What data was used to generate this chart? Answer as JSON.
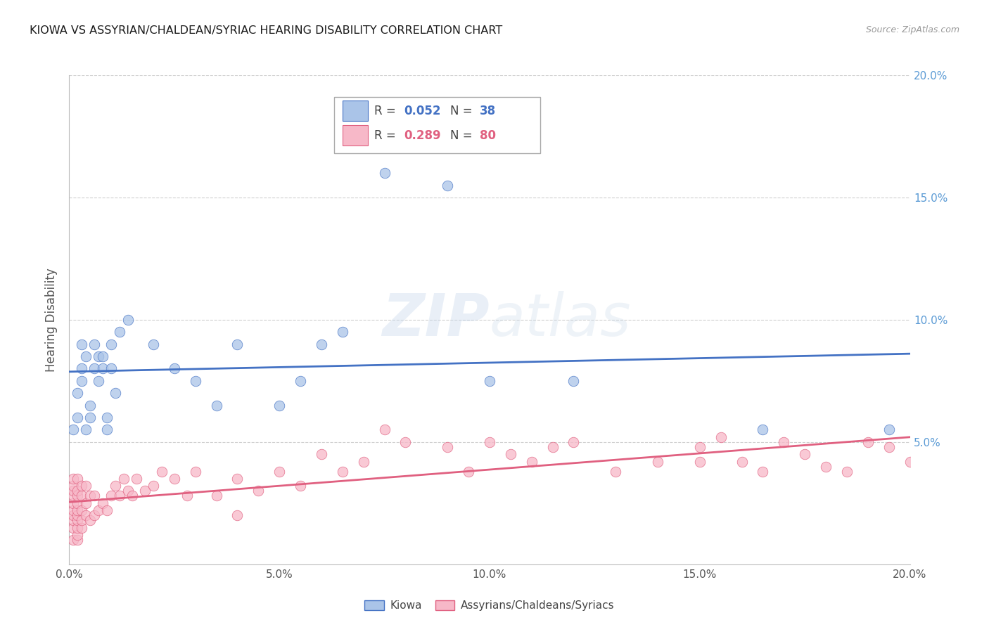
{
  "title": "KIOWA VS ASSYRIAN/CHALDEAN/SYRIAC HEARING DISABILITY CORRELATION CHART",
  "source": "Source: ZipAtlas.com",
  "ylabel": "Hearing Disability",
  "xlim": [
    0.0,
    0.2
  ],
  "ylim": [
    0.0,
    0.2
  ],
  "xticks": [
    0.0,
    0.05,
    0.1,
    0.15,
    0.2
  ],
  "yticks": [
    0.05,
    0.1,
    0.15,
    0.2
  ],
  "xticklabels": [
    "0.0%",
    "5.0%",
    "10.0%",
    "15.0%",
    "20.0%"
  ],
  "yticklabels_right": [
    "5.0%",
    "10.0%",
    "15.0%",
    "20.0%"
  ],
  "background_color": "#ffffff",
  "grid_color": "#d0d0d0",
  "blue_color": "#aac4e8",
  "pink_color": "#f7b8c8",
  "blue_line_color": "#4472c4",
  "pink_line_color": "#e06080",
  "title_color": "#1a1a1a",
  "axis_label_color": "#555555",
  "tick_label_color_right": "#5b9bd5",
  "legend_r_blue": "0.052",
  "legend_n_blue": "38",
  "legend_r_pink": "0.289",
  "legend_n_pink": "80",
  "kiowa_x": [
    0.001,
    0.002,
    0.002,
    0.003,
    0.003,
    0.003,
    0.004,
    0.004,
    0.005,
    0.005,
    0.006,
    0.006,
    0.007,
    0.007,
    0.008,
    0.008,
    0.009,
    0.009,
    0.01,
    0.01,
    0.011,
    0.012,
    0.014,
    0.02,
    0.025,
    0.03,
    0.035,
    0.04,
    0.05,
    0.055,
    0.06,
    0.065,
    0.075,
    0.09,
    0.1,
    0.12,
    0.165,
    0.195
  ],
  "kiowa_y": [
    0.055,
    0.06,
    0.07,
    0.075,
    0.08,
    0.09,
    0.055,
    0.085,
    0.06,
    0.065,
    0.08,
    0.09,
    0.075,
    0.085,
    0.08,
    0.085,
    0.06,
    0.055,
    0.08,
    0.09,
    0.07,
    0.095,
    0.1,
    0.09,
    0.08,
    0.075,
    0.065,
    0.09,
    0.065,
    0.075,
    0.09,
    0.095,
    0.16,
    0.155,
    0.075,
    0.075,
    0.055,
    0.055
  ],
  "acs_x": [
    0.001,
    0.001,
    0.001,
    0.001,
    0.001,
    0.001,
    0.001,
    0.001,
    0.001,
    0.001,
    0.002,
    0.002,
    0.002,
    0.002,
    0.002,
    0.002,
    0.002,
    0.002,
    0.002,
    0.002,
    0.003,
    0.003,
    0.003,
    0.003,
    0.003,
    0.004,
    0.004,
    0.004,
    0.005,
    0.005,
    0.006,
    0.006,
    0.007,
    0.008,
    0.009,
    0.01,
    0.011,
    0.012,
    0.013,
    0.014,
    0.015,
    0.016,
    0.018,
    0.02,
    0.022,
    0.025,
    0.028,
    0.03,
    0.035,
    0.04,
    0.045,
    0.05,
    0.055,
    0.06,
    0.065,
    0.07,
    0.075,
    0.08,
    0.09,
    0.095,
    0.1,
    0.105,
    0.11,
    0.115,
    0.12,
    0.13,
    0.14,
    0.15,
    0.155,
    0.16,
    0.165,
    0.17,
    0.175,
    0.18,
    0.185,
    0.19,
    0.195,
    0.2,
    0.15,
    0.04
  ],
  "acs_y": [
    0.01,
    0.015,
    0.018,
    0.02,
    0.022,
    0.025,
    0.028,
    0.03,
    0.032,
    0.035,
    0.01,
    0.012,
    0.015,
    0.018,
    0.02,
    0.022,
    0.025,
    0.028,
    0.03,
    0.035,
    0.015,
    0.018,
    0.022,
    0.028,
    0.032,
    0.02,
    0.025,
    0.032,
    0.018,
    0.028,
    0.02,
    0.028,
    0.022,
    0.025,
    0.022,
    0.028,
    0.032,
    0.028,
    0.035,
    0.03,
    0.028,
    0.035,
    0.03,
    0.032,
    0.038,
    0.035,
    0.028,
    0.038,
    0.028,
    0.035,
    0.03,
    0.038,
    0.032,
    0.045,
    0.038,
    0.042,
    0.055,
    0.05,
    0.048,
    0.038,
    0.05,
    0.045,
    0.042,
    0.048,
    0.05,
    0.038,
    0.042,
    0.048,
    0.052,
    0.042,
    0.038,
    0.05,
    0.045,
    0.04,
    0.038,
    0.05,
    0.048,
    0.042,
    0.042,
    0.02
  ],
  "blue_trend": [
    0.076,
    0.088
  ],
  "pink_trend": [
    0.022,
    0.052
  ]
}
